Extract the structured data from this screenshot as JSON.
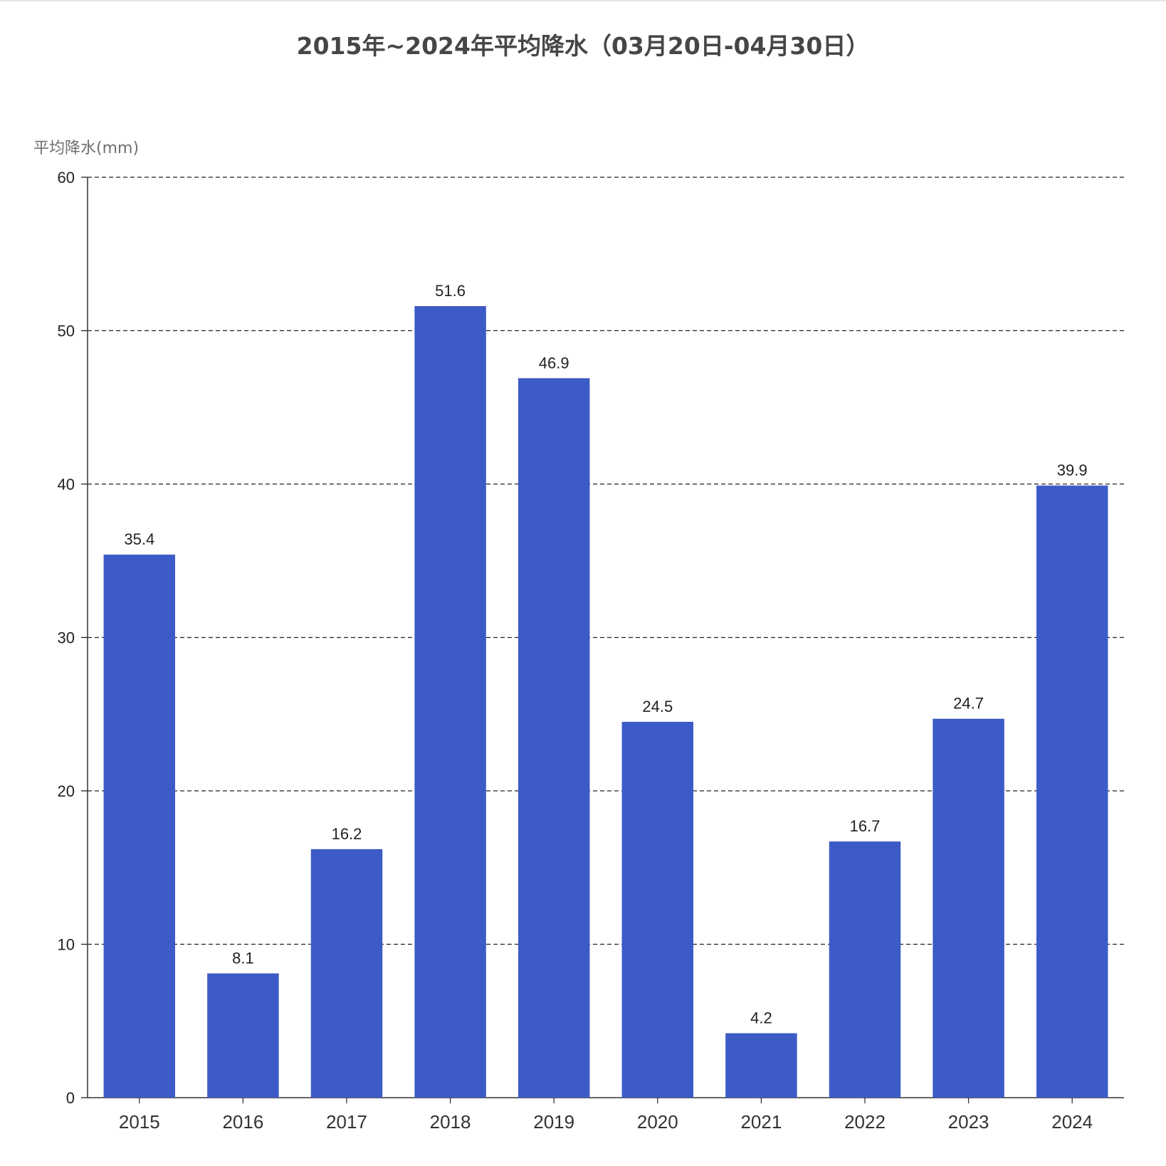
{
  "chart_data": {
    "type": "bar",
    "title": "2015年~2024年平均降水（03月20日-04月30日）",
    "ylabel": "平均降水(mm)",
    "xlabel": "",
    "categories": [
      "2015",
      "2016",
      "2017",
      "2018",
      "2019",
      "2020",
      "2021",
      "2022",
      "2023",
      "2024"
    ],
    "values": [
      35.4,
      8.1,
      16.2,
      51.6,
      46.9,
      24.5,
      4.2,
      16.7,
      24.7,
      39.9
    ],
    "ylim": [
      0,
      60
    ],
    "yticks": [
      0,
      10,
      20,
      30,
      40,
      50,
      60
    ],
    "grid": true,
    "grid_style": "dashed",
    "bar_color": "#3d5bc6",
    "data_labels": true
  }
}
